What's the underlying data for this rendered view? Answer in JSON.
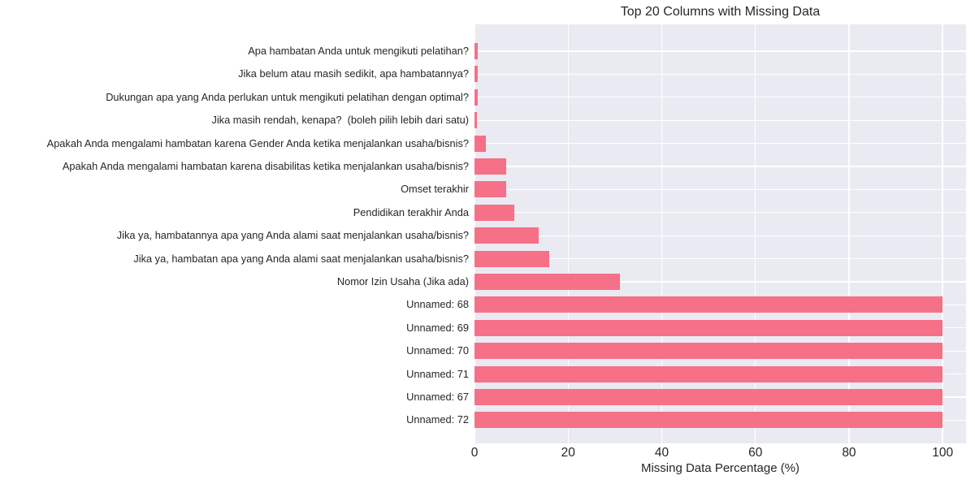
{
  "chart_data": {
    "type": "bar",
    "orientation": "horizontal",
    "title": "Top 20 Columns with Missing Data",
    "xlabel": "Missing Data Percentage (%)",
    "ylabel": "",
    "categories": [
      "Apa hambatan Anda untuk mengikuti pelatihan?",
      "Jika belum atau masih sedikit, apa hambatannya?",
      "Dukungan apa yang Anda perlukan untuk mengikuti pelatihan dengan optimal?",
      "Jika masih rendah, kenapa?  (boleh pilih lebih dari satu)",
      "Apakah Anda mengalami hambatan karena Gender Anda ketika menjalankan usaha/bisnis?",
      "Apakah Anda mengalami hambatan karena disabilitas ketika menjalankan usaha/bisnis?",
      "Omset terakhir",
      "Pendidikan terakhir Anda",
      "Jika ya, hambatannya apa yang Anda alami saat menjalankan usaha/bisnis?",
      "Jika ya, hambatan apa yang Anda alami saat menjalankan usaha/bisnis?",
      "Nomor Izin Usaha (Jika ada)",
      "Unnamed: 68",
      "Unnamed: 69",
      "Unnamed: 70",
      "Unnamed: 71",
      "Unnamed: 67",
      "Unnamed: 72"
    ],
    "values": [
      0.7,
      0.7,
      0.65,
      0.6,
      2.4,
      6.7,
      6.8,
      8.5,
      13.7,
      16.0,
      31.0,
      100,
      100,
      100,
      100,
      100,
      100
    ],
    "xlim": [
      0,
      105
    ],
    "xticks": [
      0,
      20,
      40,
      60,
      80,
      100
    ],
    "grid": true,
    "legend_position": "none",
    "colors": {
      "bar": "#f67088",
      "plot_bg": "#eaeaf2",
      "grid": "#ffffff",
      "text": "#262626",
      "figure_bg": "#ffffff"
    }
  }
}
